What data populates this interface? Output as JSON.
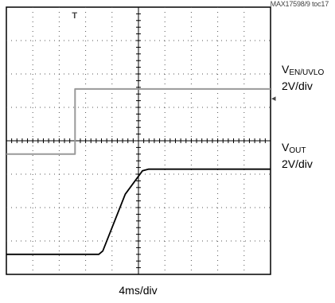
{
  "reference": "MAX17598/9 toc17",
  "chart_data": {
    "type": "line",
    "title": "",
    "x_scale": "4ms/div",
    "grid": {
      "major_x": 10,
      "major_y": 8,
      "dotted": true
    },
    "series": [
      {
        "name": "VEN/UVLO",
        "scale": "2V/div",
        "color": "#999999",
        "x_ms": [
          0,
          10.4,
          10.4,
          40
        ],
        "y_V": [
          -0.8,
          -0.8,
          3.1,
          3.1
        ]
      },
      {
        "name": "VOUT",
        "scale": "2V/div",
        "color": "#000000",
        "x_ms": [
          0,
          14.0,
          14.6,
          18.0,
          20.6,
          21.5,
          40
        ],
        "y_V": [
          -6.8,
          -6.8,
          -6.6,
          -3.2,
          -1.8,
          -1.7,
          -1.7
        ]
      }
    ],
    "labels": [
      {
        "main": "V",
        "sub": "EN/UVLO",
        "scale": "2V/div"
      },
      {
        "main": "V",
        "sub": "OUT",
        "scale": "2V/div"
      }
    ],
    "trigger_marker": "T",
    "level_marker": "◂"
  }
}
